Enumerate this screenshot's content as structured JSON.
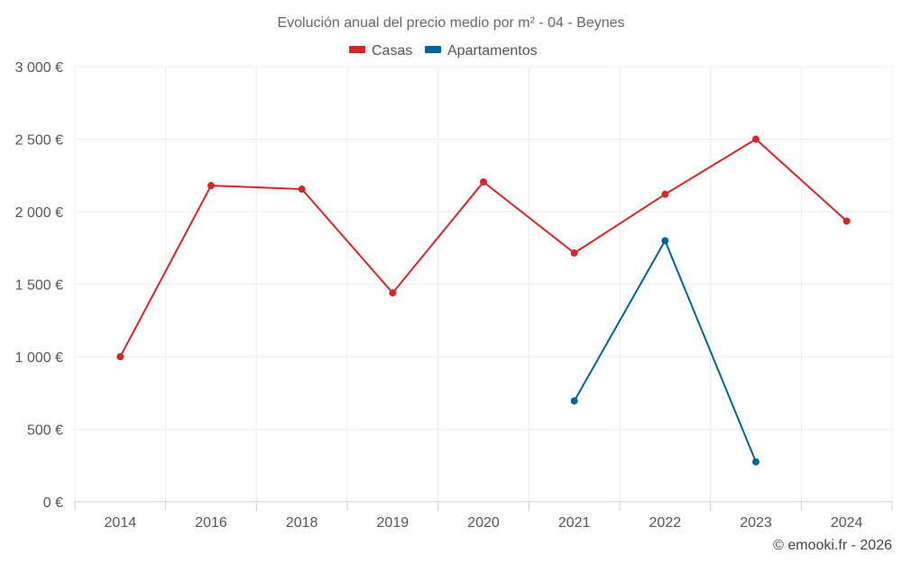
{
  "chart_data": {
    "type": "line",
    "title": "Evolución anual del precio medio por m² - 04 - Beynes",
    "categories": [
      "2014",
      "2016",
      "2018",
      "2019",
      "2020",
      "2021",
      "2022",
      "2023",
      "2024"
    ],
    "ylim": [
      0,
      3000
    ],
    "yticks": [
      0,
      500,
      1000,
      1500,
      2000,
      2500,
      3000
    ],
    "ytick_labels": [
      "0 €",
      "500 €",
      "1 000 €",
      "1 500 €",
      "2 000 €",
      "2 500 €",
      "3 000 €"
    ],
    "grid": true,
    "legend_position": "top-center",
    "series": [
      {
        "name": "Casas",
        "color": "#d62728",
        "values": [
          1000,
          2180,
          2155,
          1440,
          2205,
          1715,
          2120,
          2500,
          1935
        ]
      },
      {
        "name": "Apartamentos",
        "color": "#006699",
        "values": [
          null,
          null,
          null,
          null,
          null,
          695,
          1800,
          275,
          null
        ]
      }
    ]
  },
  "credit": "© emooki.fr - 2026"
}
